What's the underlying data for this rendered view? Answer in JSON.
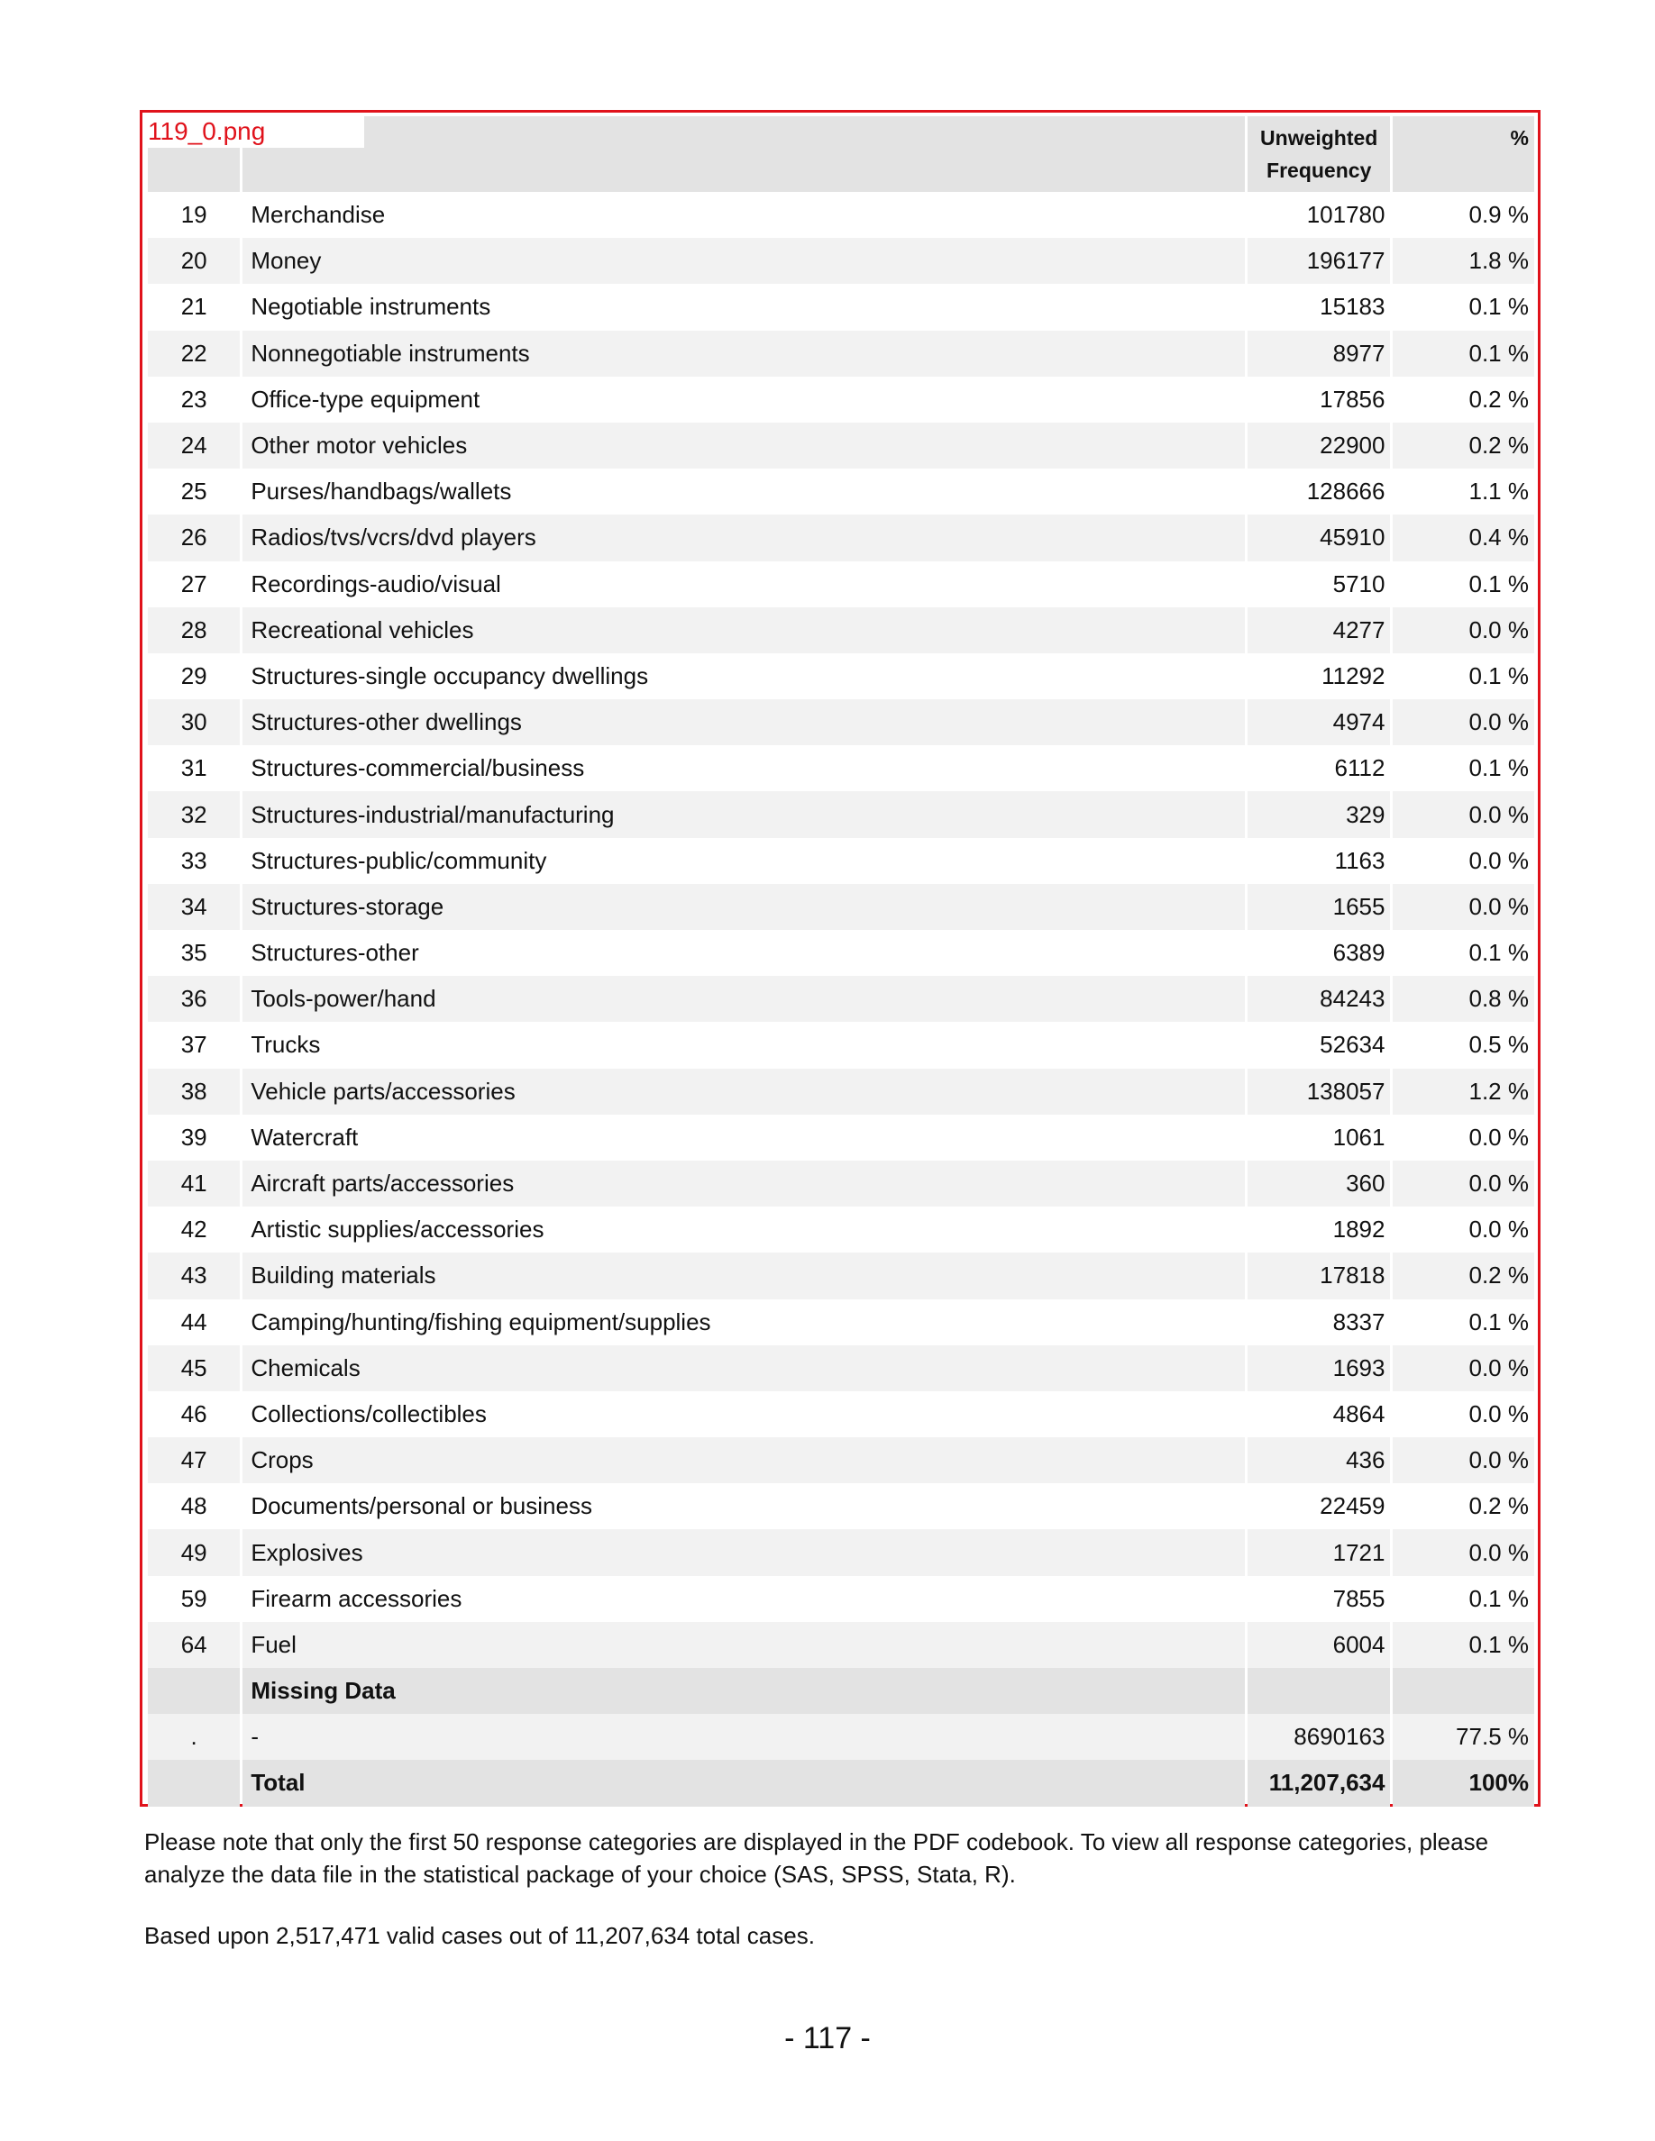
{
  "image_tag": "119_0.png",
  "table": {
    "header": {
      "code": "",
      "label": "",
      "freq_line1": "Unweighted",
      "freq_line2": "Frequency",
      "pct": "%"
    },
    "rows": [
      {
        "code": "19",
        "label": "Merchandise",
        "freq": "101780",
        "pct": "0.9 %"
      },
      {
        "code": "20",
        "label": "Money",
        "freq": "196177",
        "pct": "1.8 %"
      },
      {
        "code": "21",
        "label": "Negotiable instruments",
        "freq": "15183",
        "pct": "0.1 %"
      },
      {
        "code": "22",
        "label": "Nonnegotiable instruments",
        "freq": "8977",
        "pct": "0.1 %"
      },
      {
        "code": "23",
        "label": "Office-type equipment",
        "freq": "17856",
        "pct": "0.2 %"
      },
      {
        "code": "24",
        "label": "Other motor vehicles",
        "freq": "22900",
        "pct": "0.2 %"
      },
      {
        "code": "25",
        "label": "Purses/handbags/wallets",
        "freq": "128666",
        "pct": "1.1 %"
      },
      {
        "code": "26",
        "label": "Radios/tvs/vcrs/dvd players",
        "freq": "45910",
        "pct": "0.4 %"
      },
      {
        "code": "27",
        "label": "Recordings-audio/visual",
        "freq": "5710",
        "pct": "0.1 %"
      },
      {
        "code": "28",
        "label": "Recreational vehicles",
        "freq": "4277",
        "pct": "0.0 %"
      },
      {
        "code": "29",
        "label": "Structures-single occupancy dwellings",
        "freq": "11292",
        "pct": "0.1 %"
      },
      {
        "code": "30",
        "label": "Structures-other dwellings",
        "freq": "4974",
        "pct": "0.0 %"
      },
      {
        "code": "31",
        "label": "Structures-commercial/business",
        "freq": "6112",
        "pct": "0.1 %"
      },
      {
        "code": "32",
        "label": "Structures-industrial/manufacturing",
        "freq": "329",
        "pct": "0.0 %"
      },
      {
        "code": "33",
        "label": "Structures-public/community",
        "freq": "1163",
        "pct": "0.0 %"
      },
      {
        "code": "34",
        "label": "Structures-storage",
        "freq": "1655",
        "pct": "0.0 %"
      },
      {
        "code": "35",
        "label": "Structures-other",
        "freq": "6389",
        "pct": "0.1 %"
      },
      {
        "code": "36",
        "label": "Tools-power/hand",
        "freq": "84243",
        "pct": "0.8 %"
      },
      {
        "code": "37",
        "label": "Trucks",
        "freq": "52634",
        "pct": "0.5 %"
      },
      {
        "code": "38",
        "label": "Vehicle parts/accessories",
        "freq": "138057",
        "pct": "1.2 %"
      },
      {
        "code": "39",
        "label": "Watercraft",
        "freq": "1061",
        "pct": "0.0 %"
      },
      {
        "code": "41",
        "label": "Aircraft parts/accessories",
        "freq": "360",
        "pct": "0.0 %"
      },
      {
        "code": "42",
        "label": "Artistic supplies/accessories",
        "freq": "1892",
        "pct": "0.0 %"
      },
      {
        "code": "43",
        "label": "Building materials",
        "freq": "17818",
        "pct": "0.2 %"
      },
      {
        "code": "44",
        "label": "Camping/hunting/fishing equipment/supplies",
        "freq": "8337",
        "pct": "0.1 %"
      },
      {
        "code": "45",
        "label": "Chemicals",
        "freq": "1693",
        "pct": "0.0 %"
      },
      {
        "code": "46",
        "label": "Collections/collectibles",
        "freq": "4864",
        "pct": "0.0 %"
      },
      {
        "code": "47",
        "label": "Crops",
        "freq": "436",
        "pct": "0.0 %"
      },
      {
        "code": "48",
        "label": "Documents/personal or business",
        "freq": "22459",
        "pct": "0.2 %"
      },
      {
        "code": "49",
        "label": "Explosives",
        "freq": "1721",
        "pct": "0.0 %"
      },
      {
        "code": "59",
        "label": "Firearm accessories",
        "freq": "7855",
        "pct": "0.1 %"
      },
      {
        "code": "64",
        "label": "Fuel",
        "freq": "6004",
        "pct": "0.1 %"
      }
    ],
    "missing_header": "Missing Data",
    "missing_row": {
      "code": ".",
      "label": "-",
      "freq": "8690163",
      "pct": "77.5 %"
    },
    "total_row": {
      "label": "Total",
      "freq": "11,207,634",
      "pct": "100%"
    }
  },
  "note": "Please note that only the first 50 response categories are displayed in the PDF codebook. To view all response categories, please analyze the data file in the statistical package of your choice (SAS, SPSS, Stata, R).",
  "cases_text": "Based upon 2,517,471 valid cases out of 11,207,634 total cases.",
  "page_number": "- 117 -",
  "colors": {
    "frame_border": "#e0121b",
    "header_bg": "#e3e3e3",
    "stripe_bg": "#f2f2f2"
  }
}
